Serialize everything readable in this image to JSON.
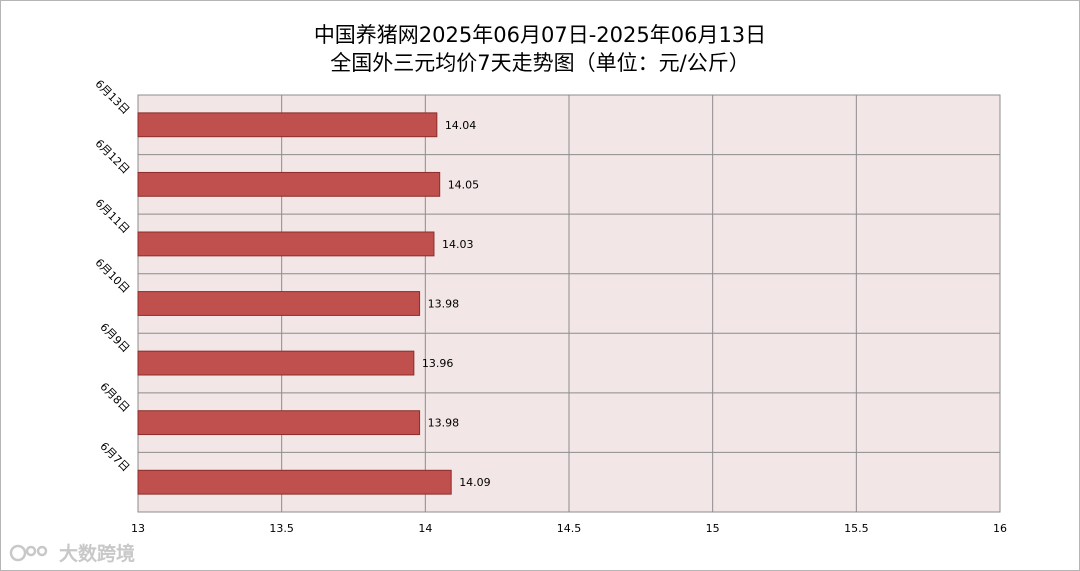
{
  "title_line1": "中国养猪网2025年06月07日-2025年06月13日",
  "title_line2": "全国外三元均价7天走势图（单位：元/公斤）",
  "watermark": "大数跨境",
  "colors": {
    "bar_fill": "#c0504d",
    "bar_stroke": "#8c2d2a",
    "plot_bg": "#f2e6e6",
    "grid": "#8c8c8c"
  },
  "chart_data": {
    "type": "bar",
    "orientation": "horizontal",
    "title": "中国养猪网2025年06月07日-2025年06月13日 全国外三元均价7天走势图（单位：元/公斤）",
    "categories": [
      "6月13日",
      "6月12日",
      "6月11日",
      "6月10日",
      "6月9日",
      "6月8日",
      "6月7日"
    ],
    "values": [
      14.04,
      14.05,
      14.03,
      13.98,
      13.96,
      13.98,
      14.09
    ],
    "value_labels": [
      "14.04",
      "14.05",
      "14.03",
      "13.98",
      "13.96",
      "13.98",
      "14.09"
    ],
    "xlim": [
      13,
      16
    ],
    "xticks": [
      "13",
      "13.5",
      "14",
      "14.5",
      "15",
      "15.5",
      "16"
    ],
    "grid": true,
    "legend": "none"
  }
}
